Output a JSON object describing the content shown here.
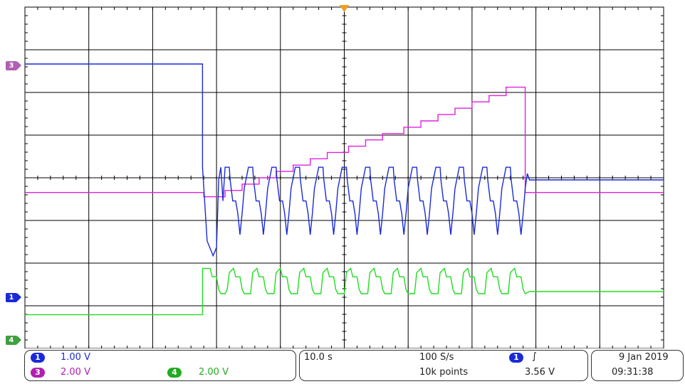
{
  "chart_data": {
    "type": "line",
    "title": "",
    "grid": true,
    "time_per_div": "10.0 s",
    "series": [
      {
        "channel": "3",
        "color": "#e020e0",
        "points": [
          [
            0,
            2.5
          ],
          [
            4.2,
            2.5
          ],
          [
            4.2,
            2.4
          ],
          [
            4.7,
            2.4
          ],
          [
            4.7,
            2.55
          ],
          [
            5.1,
            2.55
          ],
          [
            5.1,
            2.7
          ],
          [
            5.5,
            2.7
          ],
          [
            5.5,
            2.85
          ],
          [
            5.9,
            2.85
          ],
          [
            5.9,
            3.0
          ],
          [
            6.3,
            3.0
          ],
          [
            6.3,
            3.15
          ],
          [
            6.7,
            3.15
          ],
          [
            6.7,
            3.3
          ],
          [
            7.1,
            3.3
          ],
          [
            7.1,
            3.45
          ],
          [
            7.6,
            3.45
          ],
          [
            7.6,
            3.6
          ],
          [
            8.0,
            3.6
          ],
          [
            8.0,
            3.75
          ],
          [
            8.4,
            3.75
          ],
          [
            8.4,
            3.9
          ],
          [
            8.9,
            3.9
          ],
          [
            8.9,
            4.05
          ],
          [
            9.3,
            4.05
          ],
          [
            9.3,
            4.2
          ],
          [
            9.7,
            4.2
          ],
          [
            9.7,
            4.35
          ],
          [
            10.1,
            4.35
          ],
          [
            10.1,
            4.5
          ],
          [
            10.5,
            4.5
          ],
          [
            10.5,
            4.65
          ],
          [
            10.9,
            4.65
          ],
          [
            10.9,
            4.8
          ],
          [
            11.3,
            4.8
          ],
          [
            11.3,
            5.0
          ],
          [
            11.75,
            5.0
          ],
          [
            11.75,
            2.5
          ],
          [
            15,
            2.5
          ]
        ]
      },
      {
        "channel": "1",
        "color": "#1a2ad8",
        "points": [
          [
            0,
            5.55
          ],
          [
            4.17,
            5.55
          ],
          [
            4.17,
            3.1
          ],
          [
            4.28,
            1.35
          ],
          [
            4.42,
            1.0
          ],
          [
            4.5,
            1.2
          ],
          [
            4.55,
            2.8
          ],
          [
            4.6,
            3.1
          ],
          [
            4.65,
            2.3
          ],
          [
            4.7,
            3.1
          ],
          [
            4.8,
            3.1
          ],
          [
            4.82,
            2.8
          ],
          [
            4.88,
            2.3
          ],
          [
            4.95,
            2.3
          ],
          [
            5.0,
            2.0
          ],
          [
            5.05,
            1.5
          ],
          [
            5.1,
            2.0
          ],
          [
            5.15,
            2.6
          ],
          [
            5.25,
            3.1
          ],
          [
            5.35,
            3.1
          ],
          [
            5.37,
            2.8
          ],
          [
            5.43,
            2.3
          ],
          [
            5.5,
            2.3
          ],
          [
            5.55,
            2.0
          ],
          [
            5.6,
            1.5
          ],
          [
            5.65,
            2.0
          ],
          [
            5.7,
            2.6
          ],
          [
            5.8,
            3.1
          ],
          [
            5.9,
            3.1
          ],
          [
            5.92,
            2.8
          ],
          [
            5.98,
            2.3
          ],
          [
            6.05,
            2.3
          ],
          [
            6.1,
            2.0
          ],
          [
            6.15,
            1.5
          ],
          [
            6.2,
            2.0
          ],
          [
            6.25,
            2.6
          ],
          [
            6.35,
            3.1
          ],
          [
            6.45,
            3.1
          ],
          [
            6.47,
            2.8
          ],
          [
            6.53,
            2.3
          ],
          [
            6.6,
            2.3
          ],
          [
            6.65,
            2.0
          ],
          [
            6.7,
            1.5
          ],
          [
            6.75,
            2.0
          ],
          [
            6.8,
            2.6
          ],
          [
            6.9,
            3.1
          ],
          [
            7.0,
            3.1
          ],
          [
            7.02,
            2.8
          ],
          [
            7.08,
            2.3
          ],
          [
            7.15,
            2.3
          ],
          [
            7.2,
            2.0
          ],
          [
            7.25,
            1.5
          ],
          [
            7.3,
            2.0
          ],
          [
            7.35,
            2.6
          ],
          [
            7.45,
            3.1
          ],
          [
            7.55,
            3.1
          ],
          [
            7.57,
            2.8
          ],
          [
            7.63,
            2.3
          ],
          [
            7.7,
            2.3
          ],
          [
            7.75,
            2.0
          ],
          [
            7.8,
            1.5
          ],
          [
            7.85,
            2.0
          ],
          [
            7.9,
            2.6
          ],
          [
            8.0,
            3.1
          ],
          [
            8.1,
            3.1
          ],
          [
            8.12,
            2.8
          ],
          [
            8.18,
            2.3
          ],
          [
            8.25,
            2.3
          ],
          [
            8.3,
            2.0
          ],
          [
            8.35,
            1.5
          ],
          [
            8.4,
            2.0
          ],
          [
            8.45,
            2.6
          ],
          [
            8.55,
            3.1
          ],
          [
            8.65,
            3.1
          ],
          [
            8.67,
            2.8
          ],
          [
            8.73,
            2.3
          ],
          [
            8.8,
            2.3
          ],
          [
            8.85,
            2.0
          ],
          [
            8.9,
            1.5
          ],
          [
            8.95,
            2.0
          ],
          [
            9.0,
            2.6
          ],
          [
            9.1,
            3.1
          ],
          [
            9.2,
            3.1
          ],
          [
            9.22,
            2.8
          ],
          [
            9.28,
            2.3
          ],
          [
            9.35,
            2.3
          ],
          [
            9.4,
            2.0
          ],
          [
            9.45,
            1.5
          ],
          [
            9.5,
            2.0
          ],
          [
            9.55,
            2.6
          ],
          [
            9.65,
            3.1
          ],
          [
            9.75,
            3.1
          ],
          [
            9.77,
            2.8
          ],
          [
            9.83,
            2.3
          ],
          [
            9.9,
            2.3
          ],
          [
            9.95,
            2.0
          ],
          [
            10.0,
            1.5
          ],
          [
            10.05,
            2.0
          ],
          [
            10.1,
            2.6
          ],
          [
            10.2,
            3.1
          ],
          [
            10.3,
            3.1
          ],
          [
            10.32,
            2.8
          ],
          [
            10.38,
            2.3
          ],
          [
            10.45,
            2.3
          ],
          [
            10.5,
            2.0
          ],
          [
            10.55,
            1.5
          ],
          [
            10.6,
            2.0
          ],
          [
            10.65,
            2.6
          ],
          [
            10.75,
            3.1
          ],
          [
            10.85,
            3.1
          ],
          [
            10.87,
            2.8
          ],
          [
            10.93,
            2.3
          ],
          [
            11.0,
            2.3
          ],
          [
            11.05,
            2.0
          ],
          [
            11.1,
            1.5
          ],
          [
            11.15,
            2.0
          ],
          [
            11.2,
            2.6
          ],
          [
            11.3,
            3.1
          ],
          [
            11.4,
            3.1
          ],
          [
            11.42,
            2.8
          ],
          [
            11.48,
            2.3
          ],
          [
            11.55,
            2.3
          ],
          [
            11.6,
            2.0
          ],
          [
            11.65,
            1.5
          ],
          [
            11.7,
            2.0
          ],
          [
            11.75,
            2.6
          ],
          [
            11.8,
            2.95
          ],
          [
            11.85,
            2.8
          ],
          [
            11.95,
            2.8
          ],
          [
            15,
            2.8
          ]
        ]
      },
      {
        "channel": "4",
        "color": "#22dd22",
        "points": [
          [
            0,
            -0.4
          ],
          [
            4.17,
            -0.4
          ],
          [
            4.17,
            0.7
          ],
          [
            4.35,
            0.7
          ],
          [
            4.4,
            0.5
          ],
          [
            4.5,
            0.5
          ],
          [
            4.55,
            0.2
          ],
          [
            4.6,
            0.1
          ],
          [
            4.7,
            0.1
          ],
          [
            4.75,
            0.2
          ],
          [
            4.8,
            0.6
          ],
          [
            4.9,
            0.7
          ],
          [
            4.95,
            0.5
          ],
          [
            5.05,
            0.5
          ],
          [
            5.1,
            0.2
          ],
          [
            5.15,
            0.1
          ],
          [
            5.3,
            0.1
          ],
          [
            5.35,
            0.6
          ],
          [
            5.45,
            0.7
          ],
          [
            5.5,
            0.5
          ],
          [
            5.6,
            0.5
          ],
          [
            5.65,
            0.2
          ],
          [
            5.7,
            0.1
          ],
          [
            5.85,
            0.1
          ],
          [
            5.9,
            0.6
          ],
          [
            6.0,
            0.7
          ],
          [
            6.05,
            0.5
          ],
          [
            6.15,
            0.5
          ],
          [
            6.2,
            0.2
          ],
          [
            6.25,
            0.1
          ],
          [
            6.4,
            0.1
          ],
          [
            6.45,
            0.6
          ],
          [
            6.55,
            0.7
          ],
          [
            6.6,
            0.5
          ],
          [
            6.7,
            0.5
          ],
          [
            6.75,
            0.2
          ],
          [
            6.8,
            0.1
          ],
          [
            6.95,
            0.1
          ],
          [
            7.0,
            0.6
          ],
          [
            7.1,
            0.7
          ],
          [
            7.15,
            0.5
          ],
          [
            7.25,
            0.5
          ],
          [
            7.3,
            0.2
          ],
          [
            7.35,
            0.1
          ],
          [
            7.5,
            0.1
          ],
          [
            7.55,
            0.6
          ],
          [
            7.65,
            0.7
          ],
          [
            7.7,
            0.5
          ],
          [
            7.8,
            0.5
          ],
          [
            7.85,
            0.2
          ],
          [
            7.9,
            0.1
          ],
          [
            8.05,
            0.1
          ],
          [
            8.1,
            0.6
          ],
          [
            8.2,
            0.7
          ],
          [
            8.25,
            0.5
          ],
          [
            8.35,
            0.5
          ],
          [
            8.4,
            0.2
          ],
          [
            8.45,
            0.1
          ],
          [
            8.6,
            0.1
          ],
          [
            8.65,
            0.6
          ],
          [
            8.75,
            0.7
          ],
          [
            8.8,
            0.5
          ],
          [
            8.9,
            0.5
          ],
          [
            8.95,
            0.2
          ],
          [
            9.0,
            0.1
          ],
          [
            9.15,
            0.1
          ],
          [
            9.2,
            0.6
          ],
          [
            9.3,
            0.7
          ],
          [
            9.35,
            0.5
          ],
          [
            9.45,
            0.5
          ],
          [
            9.5,
            0.2
          ],
          [
            9.55,
            0.1
          ],
          [
            9.7,
            0.1
          ],
          [
            9.75,
            0.6
          ],
          [
            9.85,
            0.7
          ],
          [
            9.9,
            0.5
          ],
          [
            10.0,
            0.5
          ],
          [
            10.05,
            0.2
          ],
          [
            10.1,
            0.1
          ],
          [
            10.25,
            0.1
          ],
          [
            10.3,
            0.6
          ],
          [
            10.4,
            0.7
          ],
          [
            10.45,
            0.5
          ],
          [
            10.55,
            0.5
          ],
          [
            10.6,
            0.2
          ],
          [
            10.65,
            0.1
          ],
          [
            10.8,
            0.1
          ],
          [
            10.85,
            0.6
          ],
          [
            10.95,
            0.7
          ],
          [
            11.0,
            0.5
          ],
          [
            11.1,
            0.5
          ],
          [
            11.15,
            0.2
          ],
          [
            11.2,
            0.1
          ],
          [
            11.35,
            0.1
          ],
          [
            11.4,
            0.6
          ],
          [
            11.5,
            0.7
          ],
          [
            11.55,
            0.5
          ],
          [
            11.65,
            0.5
          ],
          [
            11.7,
            0.2
          ],
          [
            11.75,
            0.1
          ],
          [
            11.85,
            0.15
          ],
          [
            15,
            0.15
          ]
        ]
      }
    ],
    "x_range": [
      0,
      15
    ],
    "y_range": [
      -1.2,
      6.9
    ],
    "x_divisions": 10,
    "y_divisions": 8,
    "channel_markers": [
      {
        "label": "3",
        "color": "#b060b0",
        "y": 5.5
      },
      {
        "label": "1",
        "color": "#1a2ad8",
        "y": 0
      },
      {
        "label": "4",
        "color": "#40a040",
        "y": -1
      }
    ]
  },
  "settings": {
    "ch1_badge": "1",
    "ch1_scale": "1.00 V",
    "ch1_color": "#1a2ad8",
    "ch3_badge": "3",
    "ch3_scale": "2.00 V",
    "ch3_color": "#b020b0",
    "ch4_badge": "4",
    "ch4_scale": "2.00 V",
    "ch4_color": "#22aa22",
    "timebase": "10.0 s",
    "sample_rate": "100 S/s",
    "record_length": "10k points",
    "trigger_source": "1",
    "trigger_slope_symbol": "∫",
    "trigger_level": "3.56 V",
    "date": "9 Jan  2019",
    "time": "09:31:38"
  }
}
